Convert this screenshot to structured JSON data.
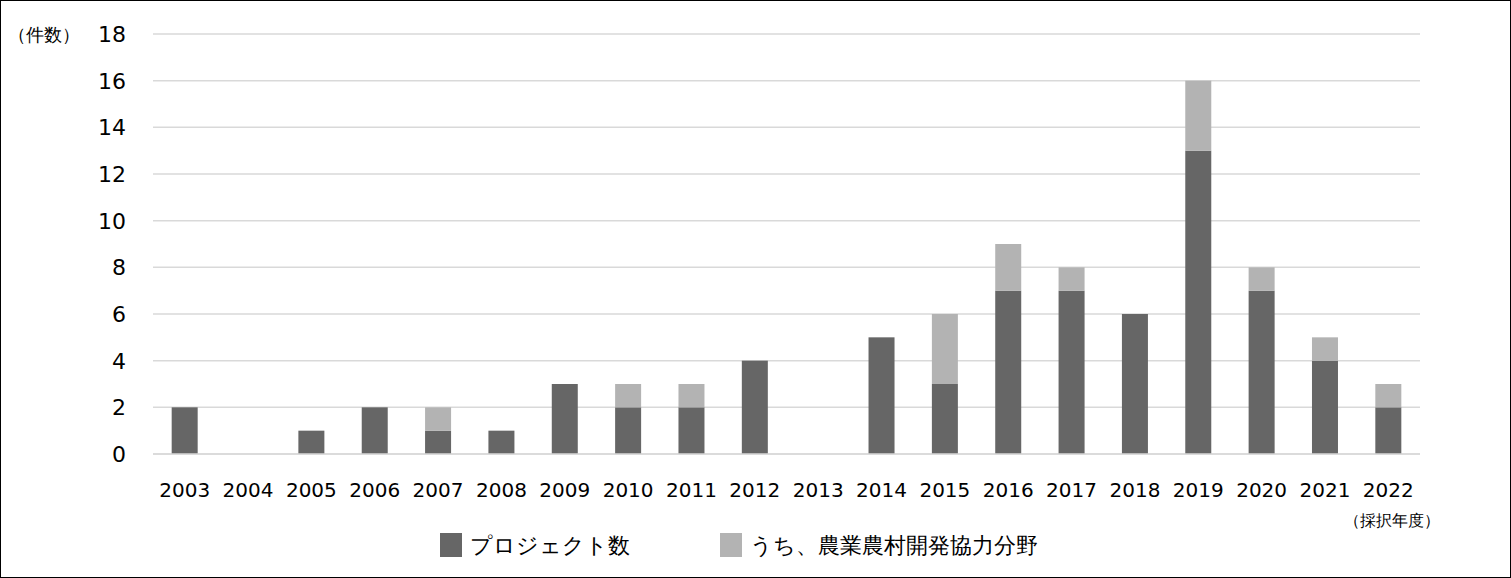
{
  "chart_data": {
    "type": "bar",
    "stacked": true,
    "grid": true,
    "legend": "bottom",
    "y_label": "（件数）",
    "x_label": "（採択年度）",
    "categories": [
      "2003",
      "2004",
      "2005",
      "2006",
      "2007",
      "2008",
      "2009",
      "2010",
      "2011",
      "2012",
      "2013",
      "2014",
      "2015",
      "2016",
      "2017",
      "2018",
      "2019",
      "2020",
      "2021",
      "2022"
    ],
    "series": [
      {
        "name": "プロジェクト数",
        "color": "#666666",
        "values": [
          2,
          0,
          1,
          2,
          1,
          1,
          3,
          2,
          2,
          4,
          0,
          5,
          3,
          7,
          7,
          6,
          13,
          7,
          4,
          2
        ]
      },
      {
        "name": "うち、農業農村開発協力分野",
        "color": "#b3b3b3",
        "values": [
          0,
          0,
          0,
          0,
          1,
          0,
          0,
          1,
          1,
          0,
          0,
          0,
          3,
          2,
          1,
          0,
          3,
          1,
          1,
          1
        ]
      }
    ],
    "ylim": [
      0,
      18
    ],
    "yticks": [
      0,
      2,
      4,
      6,
      8,
      10,
      12,
      14,
      16,
      18
    ]
  }
}
